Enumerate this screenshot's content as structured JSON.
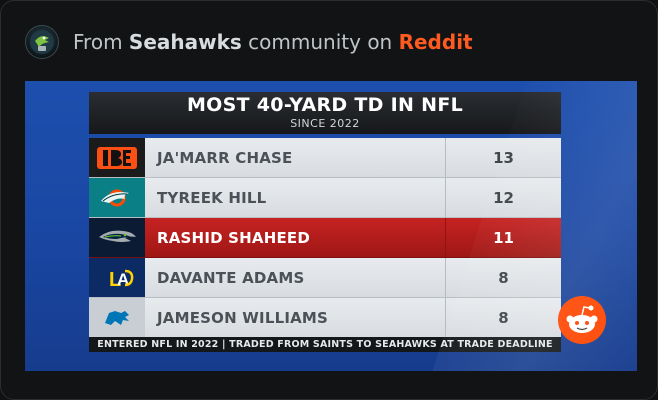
{
  "header": {
    "prefix": "From",
    "community": "Seahawks",
    "middle": "community on",
    "platform": "Reddit"
  },
  "graphic": {
    "title": "MOST 40-YARD TD IN NFL",
    "subtitle": "SINCE 2022",
    "rows": [
      {
        "player": "JA'MARR CHASE",
        "value": "13",
        "team_logo": "bengals-logo"
      },
      {
        "player": "TYREEK HILL",
        "value": "12",
        "team_logo": "dolphins-logo"
      },
      {
        "player": "RASHID SHAHEED",
        "value": "11",
        "team_logo": "seahawks-logo",
        "highlight": true
      },
      {
        "player": "DAVANTE ADAMS",
        "value": "8",
        "team_logo": "rams-logo"
      },
      {
        "player": "JAMESON WILLIAMS",
        "value": "8",
        "team_logo": "lions-logo"
      }
    ],
    "footer": "ENTERED NFL IN 2022 | TRADED FROM SAINTS TO SEAHAWKS AT TRADE DEADLINE"
  },
  "colors": {
    "reddit_orange": "#ff5a1f",
    "highlight_red": "#c62322",
    "broadcast_blue": "#1d4fae"
  }
}
